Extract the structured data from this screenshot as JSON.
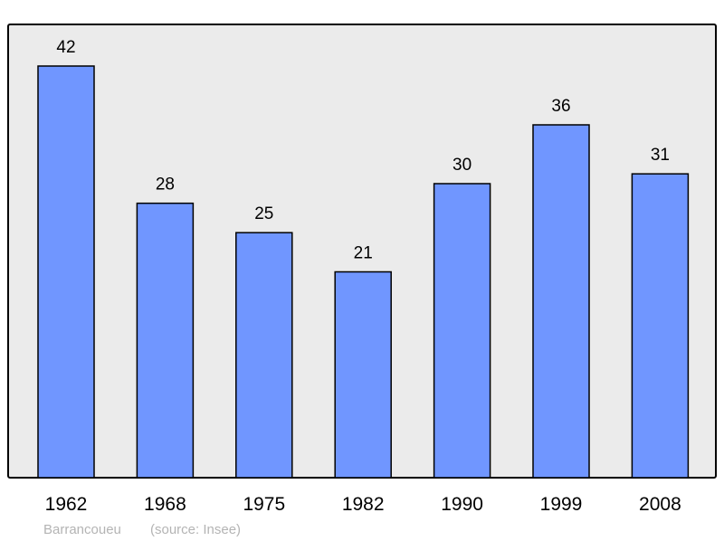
{
  "chart_data": {
    "type": "bar",
    "categories": [
      "1962",
      "1968",
      "1975",
      "1982",
      "1990",
      "1999",
      "2008"
    ],
    "values": [
      42,
      28,
      25,
      21,
      30,
      36,
      31
    ],
    "title": "",
    "xlabel": "",
    "ylabel": "",
    "ylim": [
      0,
      46
    ],
    "grid": false,
    "data_labels": true,
    "bar_color": "#7096ff",
    "background_color": "#ebebeb"
  },
  "footer": {
    "place": "Barrancoueu",
    "source": "(source: Insee)"
  }
}
